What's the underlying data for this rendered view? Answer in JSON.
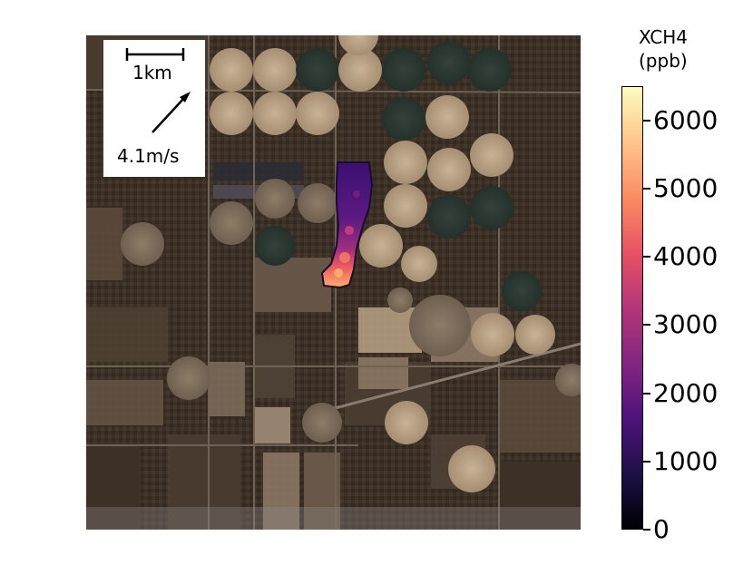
{
  "scale_bar": {
    "label": "1km"
  },
  "wind": {
    "label": "4.1m/s"
  },
  "colorbar": {
    "title_line1": "XCH4",
    "title_line2": "(ppb)",
    "colormap": "magma",
    "range": [
      0,
      6500
    ],
    "ticks": [
      "0",
      "1000",
      "2000",
      "3000",
      "4000",
      "5000",
      "6000"
    ]
  },
  "colors": {
    "terrain_dark": "#3a2e25",
    "field_light": "#b79f84",
    "field_dark_green": "#2f3a34",
    "plume_low": "#3b0f70",
    "plume_high": "#fcb06d"
  }
}
